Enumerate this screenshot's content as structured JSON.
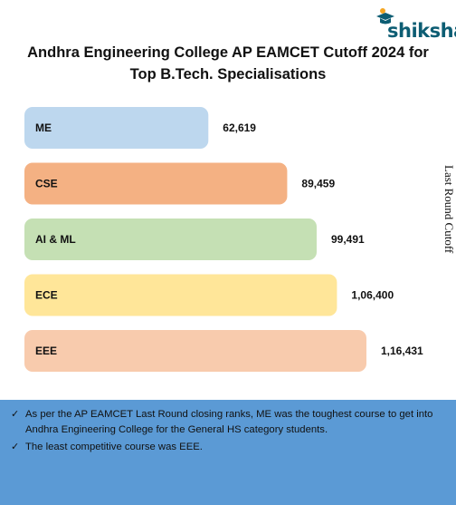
{
  "brand": {
    "name": "shiksha"
  },
  "chart_data": {
    "type": "bar",
    "orientation": "horizontal",
    "title_lines": [
      "Andhra Engineering College AP EAMCET Cutoff 2024 for",
      "Top B.Tech. Specialisations"
    ],
    "ylabel": "Last Round Cutoff",
    "categories": [
      "ME",
      "CSE",
      "AI & ML",
      "ECE",
      "EEE"
    ],
    "values": [
      62619,
      89459,
      99491,
      106400,
      116431
    ],
    "value_labels": [
      "62,619",
      "89,459",
      "99,491",
      "1,06,400",
      "1,16,431"
    ],
    "colors": [
      "#bdd7ee",
      "#f4b183",
      "#c5e0b4",
      "#ffe699",
      "#f8cbad"
    ],
    "grid": false,
    "legend": "none"
  },
  "notes": [
    "As per the AP EAMCET Last Round closing ranks, ME was the toughest course to get into Andhra Engineering College for the General HS category students.",
    "The least competitive course was EEE."
  ],
  "icons": {
    "bullet": "check-icon",
    "logo": "graduation-cap-icon"
  }
}
